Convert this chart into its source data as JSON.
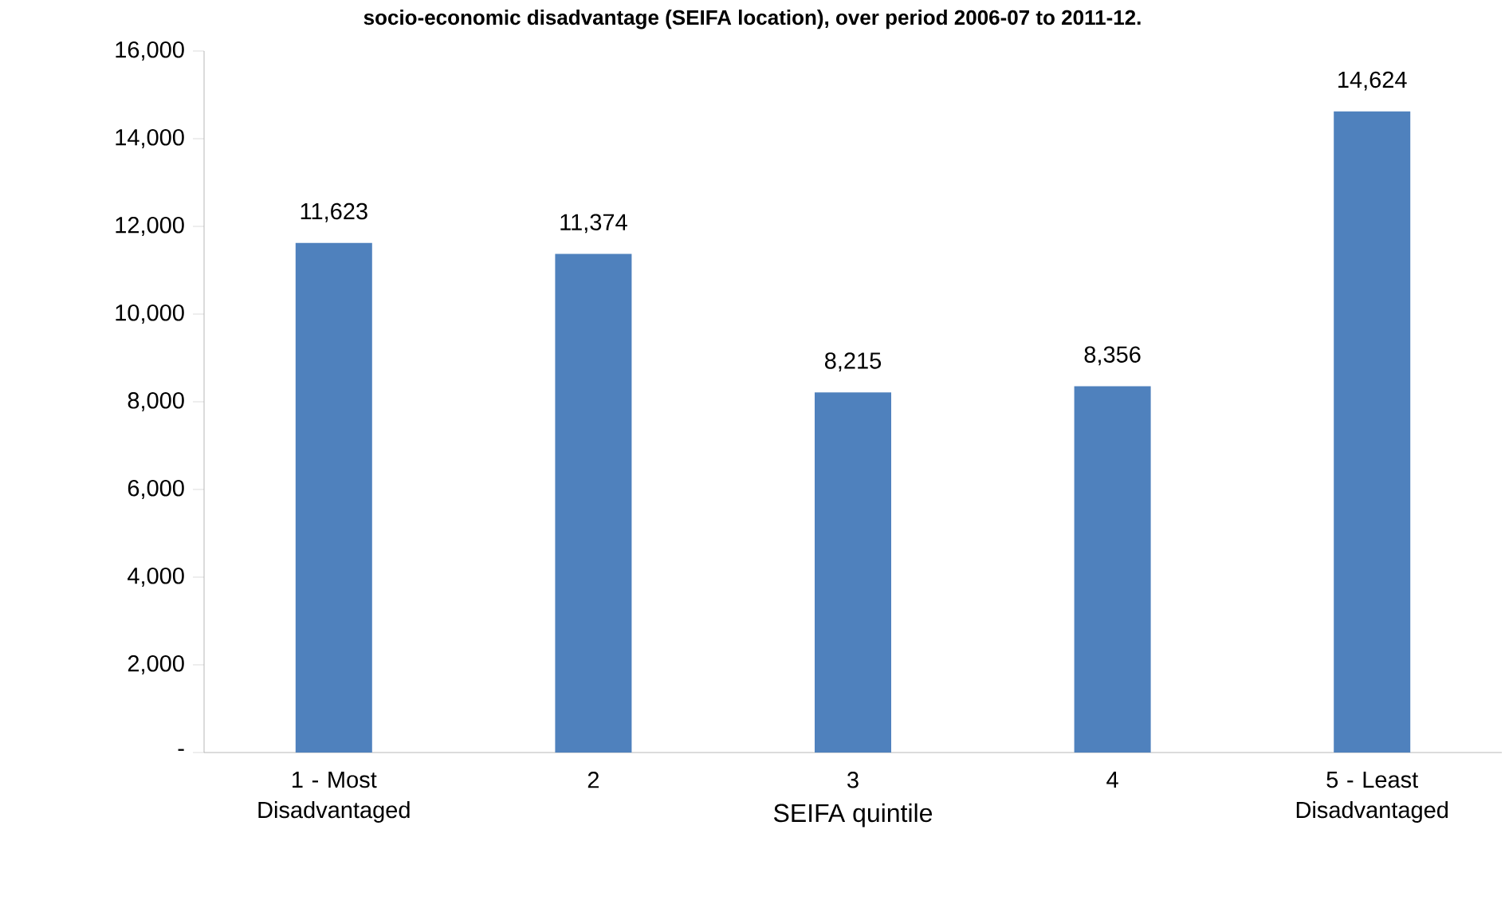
{
  "chart_data": {
    "type": "bar",
    "title": "socio-economic disadvantage (SEIFA location), over period 2006-07 to 2011-12.",
    "xlabel": "SEIFA  quintile",
    "categories": [
      "1 - Most Disadvantaged",
      "2",
      "3",
      "4",
      "5 - Least Disadvantaged"
    ],
    "values": [
      11623,
      11374,
      8215,
      8356,
      14624
    ],
    "value_labels": [
      "11,623",
      "11,374",
      "8,215",
      "8,356",
      "14,624"
    ],
    "color": "#4f81bd",
    "ylim": [
      0,
      16000
    ],
    "yticks": [
      {
        "value": 0,
        "label": "-"
      },
      {
        "value": 2000,
        "label": "2,000"
      },
      {
        "value": 4000,
        "label": "4,000"
      },
      {
        "value": 6000,
        "label": "6,000"
      },
      {
        "value": 8000,
        "label": "8,000"
      },
      {
        "value": 10000,
        "label": "10,000"
      },
      {
        "value": 12000,
        "label": "12,000"
      },
      {
        "value": 14000,
        "label": "14,000"
      },
      {
        "value": 16000,
        "label": "16,000"
      }
    ],
    "grid": false
  }
}
